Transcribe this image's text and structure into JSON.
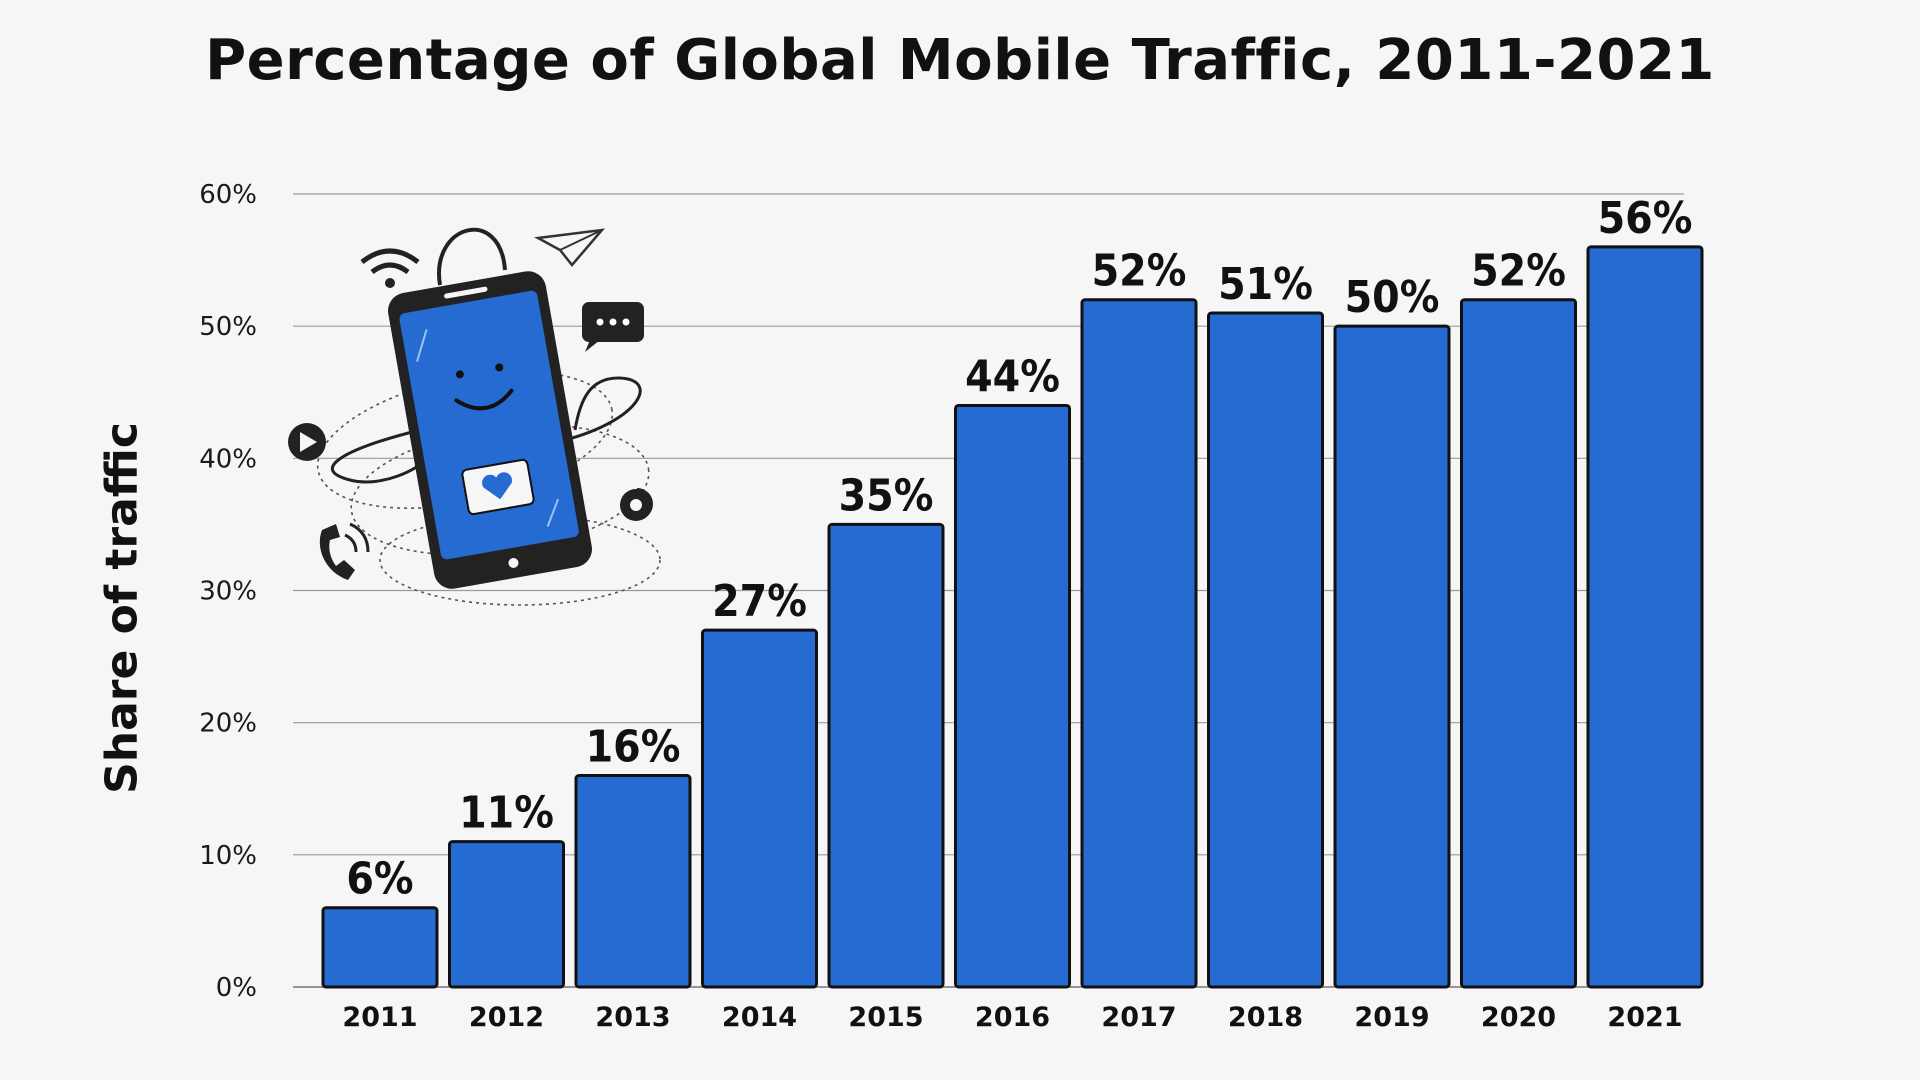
{
  "chart_data": {
    "type": "bar",
    "title": "Percentage of Global Mobile Traffic, 2011-2021",
    "ylabel": "Share of traffic",
    "xlabel": "",
    "categories": [
      "2011",
      "2012",
      "2013",
      "2014",
      "2015",
      "2016",
      "2017",
      "2018",
      "2019",
      "2020",
      "2021"
    ],
    "values": [
      6,
      11,
      16,
      27,
      35,
      44,
      52,
      51,
      50,
      52,
      56
    ],
    "data_labels": [
      "6%",
      "11%",
      "16%",
      "27%",
      "35%",
      "44%",
      "52%",
      "51%",
      "50%",
      "52%",
      "56%"
    ],
    "ylim": [
      0,
      60
    ],
    "yticks": [
      0,
      10,
      20,
      30,
      40,
      50,
      60
    ],
    "ytick_labels": [
      "0%",
      "10%",
      "20%",
      "30%",
      "40%",
      "50%",
      "60%"
    ],
    "grid": true,
    "legend": "none",
    "bar_color": "#256bd1",
    "illustration": "smartphone-icon"
  }
}
